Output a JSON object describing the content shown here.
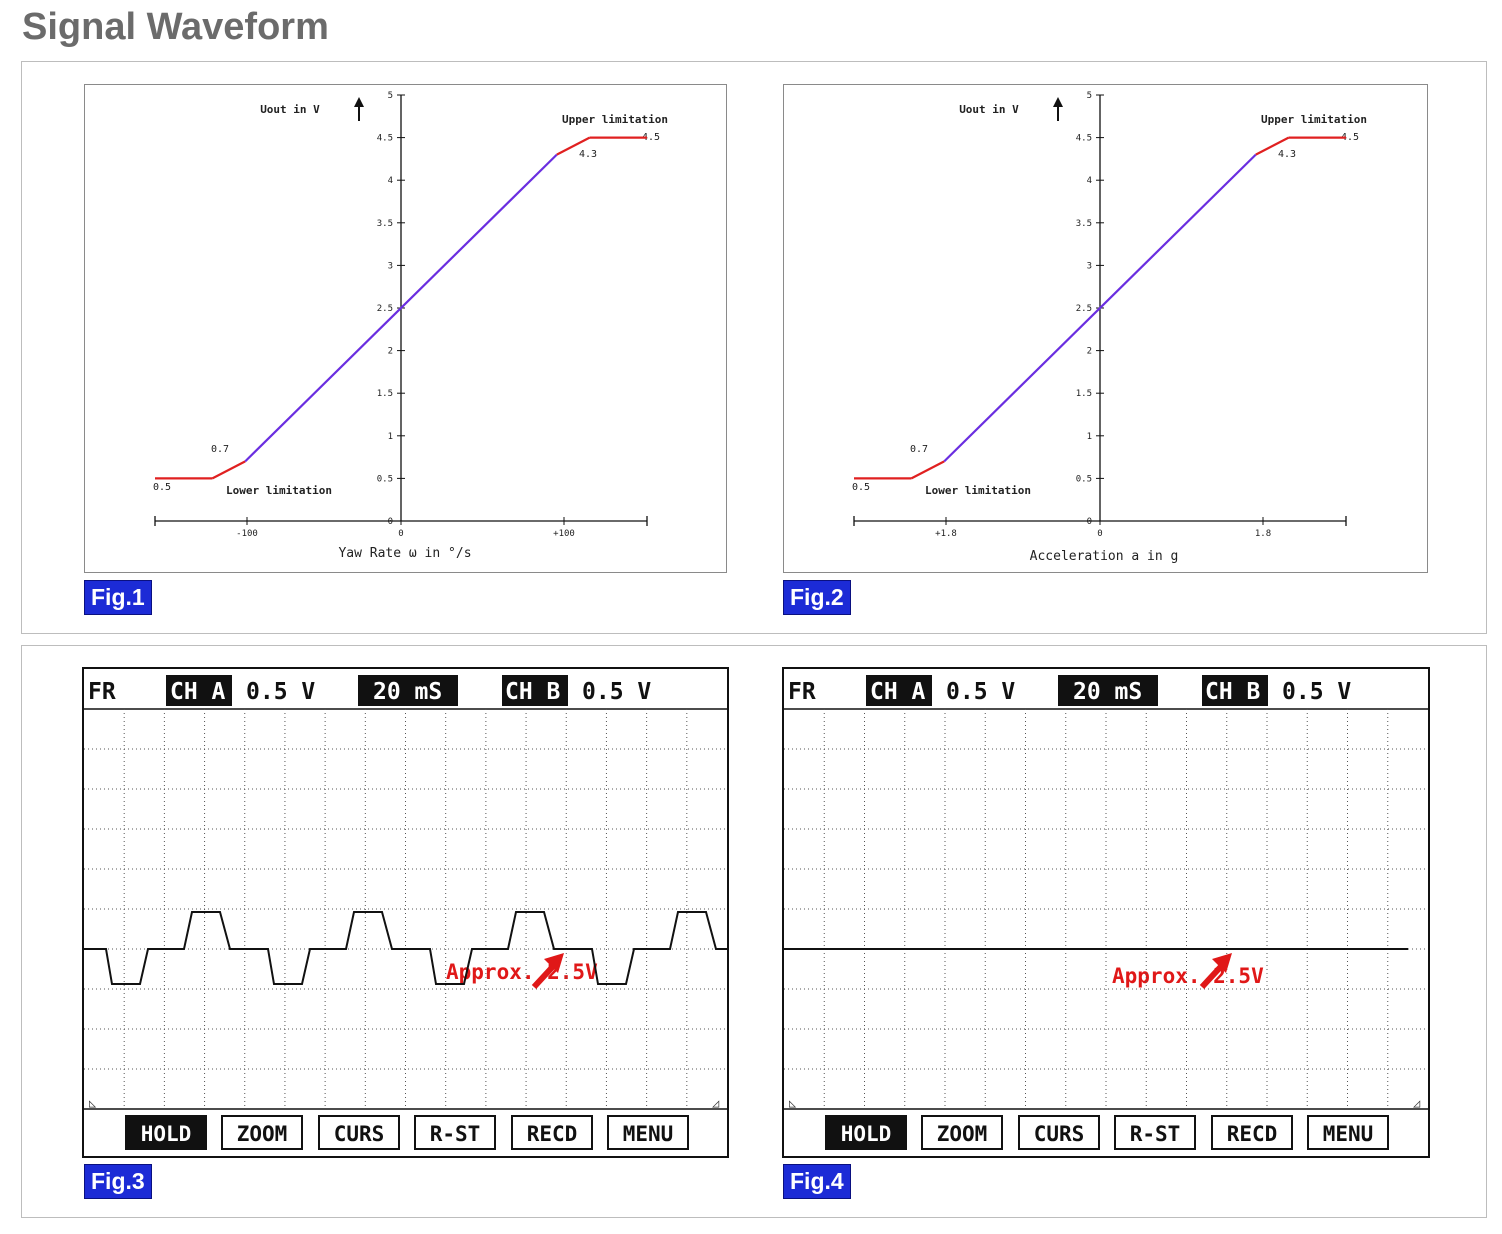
{
  "page": {
    "title": "Signal Waveform"
  },
  "colors": {
    "accent": "#1c2bd6",
    "limit_line": "#e02020",
    "linear_line": "#6a2ee0",
    "annotation": "#e01818"
  },
  "charts": [
    {
      "id": "fig1",
      "badge": "Fig.1",
      "ylabel": "Uout in V",
      "xlabel": "Yaw Rate ω in °/s",
      "y_ticks": [
        "5",
        "4.5",
        "4",
        "3.5",
        "3",
        "2.5",
        "2",
        "1.5",
        "1",
        "0.5",
        "0"
      ],
      "x_ticks": [
        "-100",
        "0",
        "+100"
      ],
      "upper_label": "Upper limitation",
      "lower_label": "Lower limitation",
      "annot_low": "0.5",
      "annot_07": "0.7",
      "annot_43": "4.3",
      "annot_45": "4.5"
    },
    {
      "id": "fig2",
      "badge": "Fig.2",
      "ylabel": "Uout in V",
      "xlabel": "Acceleration a in g",
      "y_ticks": [
        "5",
        "4.5",
        "4",
        "3.5",
        "3",
        "2.5",
        "2",
        "1.5",
        "1",
        "0.5",
        "0"
      ],
      "x_ticks": [
        "+1.8",
        "0",
        "1.8"
      ],
      "upper_label": "Upper limitation",
      "lower_label": "Lower limitation",
      "annot_low": "0.5",
      "annot_07": "0.7",
      "annot_43": "4.3",
      "annot_45": "4.5"
    }
  ],
  "chart_data": [
    {
      "type": "line",
      "title": "",
      "xlabel": "Yaw Rate ω in °/s",
      "ylabel": "Uout in V",
      "ylim": [
        0,
        5
      ],
      "x_ticks": [
        "-100",
        "0",
        "+100"
      ],
      "series": [
        {
          "name": "",
          "x": [
            -150,
            -115,
            -95,
            95,
            115,
            150
          ],
          "values": [
            0.5,
            0.5,
            0.7,
            4.3,
            4.5,
            4.5
          ]
        }
      ]
    },
    {
      "type": "line",
      "title": "",
      "xlabel": "Acceleration a in g",
      "ylabel": "Uout in V",
      "ylim": [
        0,
        5
      ],
      "x_ticks": [
        "+1.8",
        "0",
        "1.8"
      ],
      "series": [
        {
          "name": "",
          "x": [
            -2.7,
            -2.07,
            -1.71,
            1.71,
            2.07,
            2.7
          ],
          "values": [
            0.5,
            0.5,
            0.7,
            4.3,
            4.5,
            4.5
          ]
        }
      ]
    }
  ],
  "scopes": [
    {
      "id": "fig3",
      "badge": "Fig.3",
      "fr": "FR",
      "ch_a": "CH A",
      "ch_a_value": "0.5 V",
      "time": "20 mS",
      "ch_b": "CH B",
      "ch_b_value": "0.5 V",
      "annotation": "Approx. 2.5V",
      "buttons": [
        "HOLD",
        "ZOOM",
        "CURS",
        "R-ST",
        "RECD",
        "MENU"
      ],
      "waveform": "square"
    },
    {
      "id": "fig4",
      "badge": "Fig.4",
      "fr": "FR",
      "ch_a": "CH A",
      "ch_a_value": "0.5 V",
      "time": "20 mS",
      "ch_b": "CH B",
      "ch_b_value": "0.5 V",
      "annotation": "Approx. 2.5V",
      "buttons": [
        "HOLD",
        "ZOOM",
        "CURS",
        "R-ST",
        "RECD",
        "MENU"
      ],
      "waveform": "flat"
    }
  ]
}
